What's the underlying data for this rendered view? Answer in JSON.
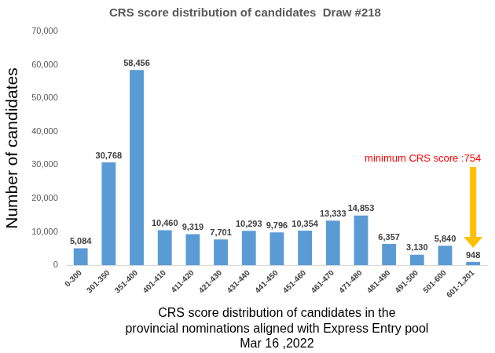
{
  "chart_data": {
    "type": "bar",
    "title": "CRS score distribution of candidates  Draw #218",
    "y_label": "Number of candidates",
    "x_label": [
      "CRS score distribution of candidates in the",
      "provincial nominations aligned with Express Entry pool",
      "Mar 16 ,2022"
    ],
    "annotations": [
      "minimum CRS score :754"
    ],
    "categories": [
      "0-300",
      "301-350",
      "351-400",
      "401-410",
      "411-420",
      "421-430",
      "431-440",
      "441-450",
      "451-460",
      "461-470",
      "471-480",
      "481-490",
      "491-500",
      "501-600",
      "601-1,201"
    ],
    "values": [
      5084,
      30768,
      58456,
      10460,
      9319,
      7701,
      10293,
      9796,
      10354,
      13333,
      14853,
      6357,
      3130,
      5840,
      948
    ],
    "value_labels": [
      "5,084",
      "30,768",
      "58,456",
      "10,460",
      "9,319",
      "7,701",
      "10,293",
      "9,796",
      "10,354",
      "13,333",
      "14,853",
      "6,357",
      "3,130",
      "5,840",
      "948"
    ],
    "color": "#5b9bd5",
    "ylim": [
      0,
      70000
    ],
    "yticks": [
      0,
      {
        "value": 10000,
        "label": "10,000"
      },
      {
        "value": 20000,
        "label": "20,000"
      },
      {
        "value": 30000,
        "label": "30,000"
      },
      {
        "value": 40000,
        "label": "40,000"
      },
      {
        "value": 50000,
        "label": "50,000"
      },
      {
        "value": 60000,
        "label": "60,000"
      },
      {
        "value": 70000,
        "label": "70,000"
      }
    ],
    "grid": false,
    "data_labels": true
  }
}
